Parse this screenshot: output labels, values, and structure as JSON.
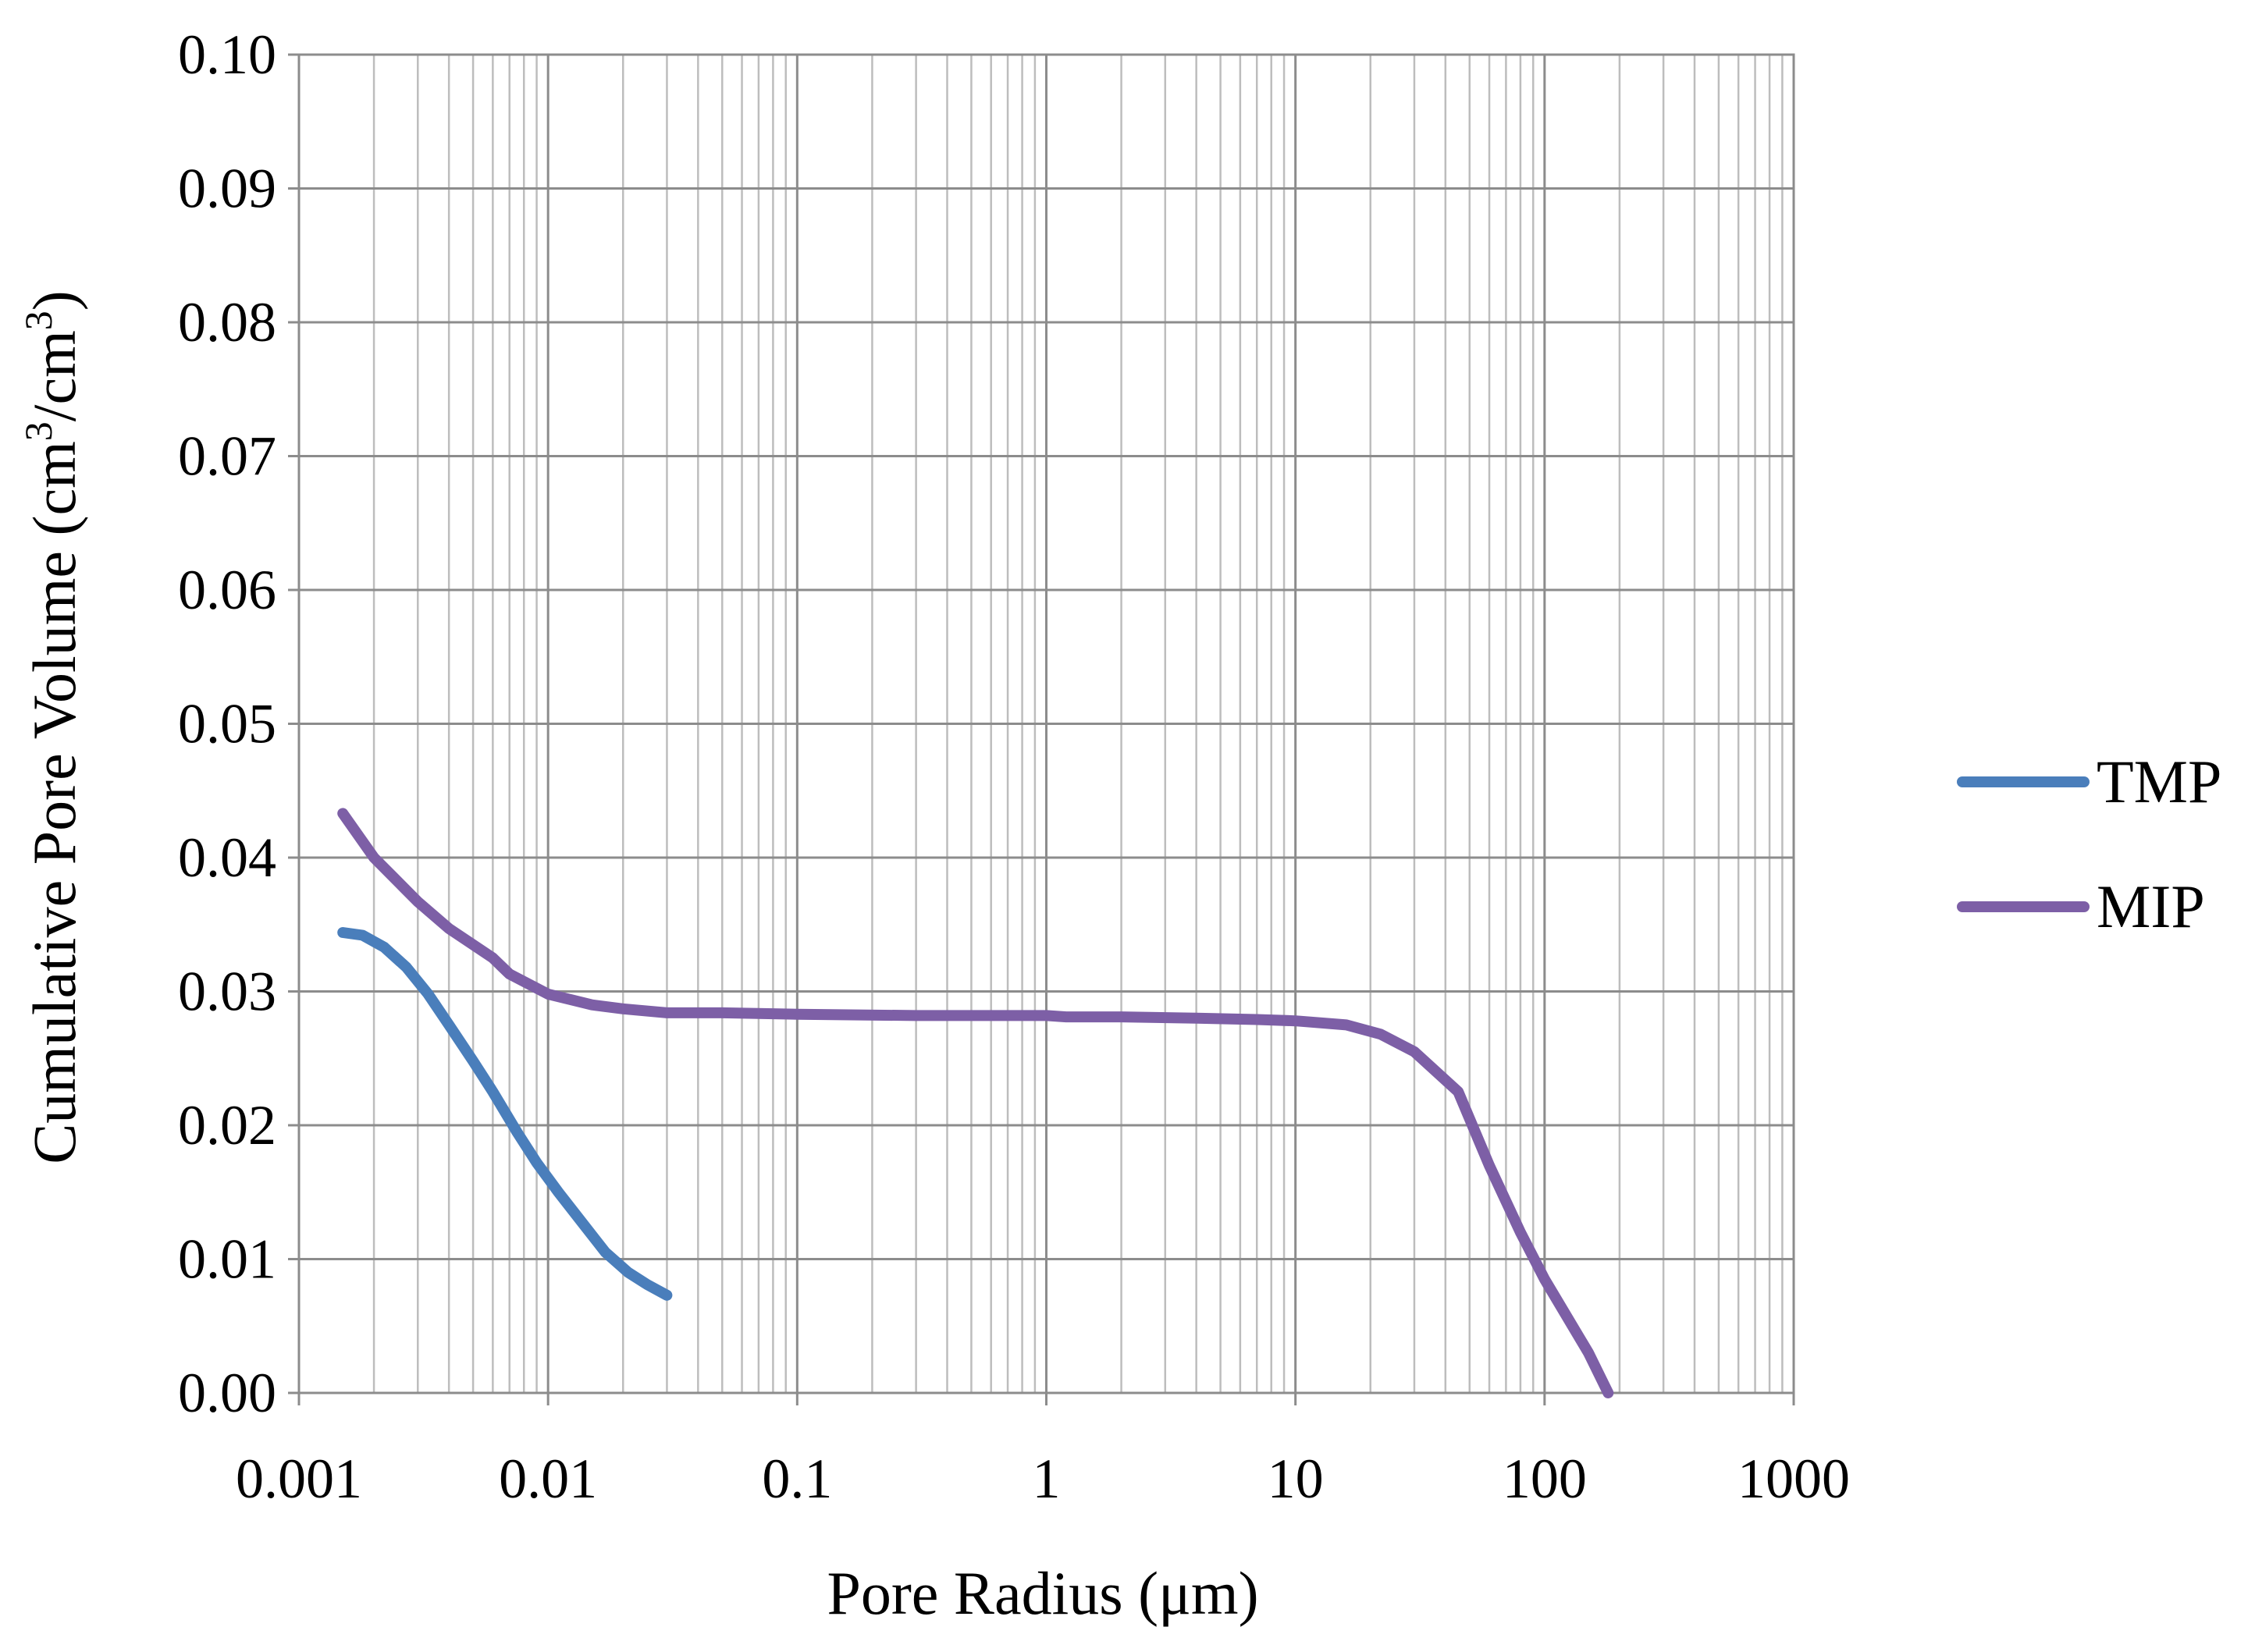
{
  "chart_data": {
    "type": "line",
    "xlabel": "Pore Radius (μm)",
    "ylabel": {
      "prefix": "Cumulative Pore Volume (cm",
      "mid": "/cm",
      "suffix": ")",
      "sup": "3"
    },
    "x_scale": "log",
    "xlim": [
      0.001,
      1000
    ],
    "ylim": [
      0,
      0.1
    ],
    "x_ticks": [
      "0.001",
      "0.01",
      "0.1",
      "1",
      "10",
      "100",
      "1000"
    ],
    "y_ticks": [
      "0.00",
      "0.01",
      "0.02",
      "0.03",
      "0.04",
      "0.05",
      "0.06",
      "0.07",
      "0.08",
      "0.09",
      "0.10"
    ],
    "grid": true,
    "legend_position": "right",
    "series": [
      {
        "name": "TMP",
        "color": "#4a7ebb",
        "points": [
          [
            0.0015,
            0.0344
          ],
          [
            0.0018,
            0.0342
          ],
          [
            0.0022,
            0.0333
          ],
          [
            0.0027,
            0.0318
          ],
          [
            0.0033,
            0.0298
          ],
          [
            0.004,
            0.0275
          ],
          [
            0.005,
            0.0248
          ],
          [
            0.006,
            0.0225
          ],
          [
            0.0075,
            0.0195
          ],
          [
            0.009,
            0.0172
          ],
          [
            0.011,
            0.015
          ],
          [
            0.014,
            0.0125
          ],
          [
            0.017,
            0.0105
          ],
          [
            0.021,
            0.009
          ],
          [
            0.025,
            0.0081
          ],
          [
            0.03,
            0.0073
          ]
        ]
      },
      {
        "name": "MIP",
        "color": "#7d5fa6",
        "points": [
          [
            0.0015,
            0.0433
          ],
          [
            0.002,
            0.04
          ],
          [
            0.003,
            0.0367
          ],
          [
            0.004,
            0.0347
          ],
          [
            0.006,
            0.0325
          ],
          [
            0.007,
            0.0313
          ],
          [
            0.01,
            0.0298
          ],
          [
            0.015,
            0.029
          ],
          [
            0.02,
            0.0287
          ],
          [
            0.03,
            0.0284
          ],
          [
            0.05,
            0.0284
          ],
          [
            0.1,
            0.0283
          ],
          [
            0.3,
            0.0282
          ],
          [
            1,
            0.0282
          ],
          [
            1.2,
            0.0281
          ],
          [
            2,
            0.0281
          ],
          [
            4,
            0.028
          ],
          [
            7,
            0.0279
          ],
          [
            10,
            0.0278
          ],
          [
            16,
            0.0275
          ],
          [
            22,
            0.0268
          ],
          [
            30,
            0.0255
          ],
          [
            45,
            0.0225
          ],
          [
            60,
            0.017
          ],
          [
            80,
            0.012
          ],
          [
            100,
            0.0085
          ],
          [
            150,
            0.003
          ],
          [
            180,
            0.0
          ]
        ]
      }
    ]
  }
}
